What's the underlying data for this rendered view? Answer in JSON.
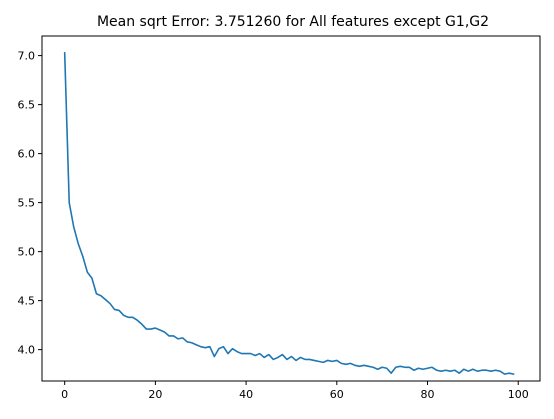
{
  "chart_data": {
    "type": "line",
    "title": "Mean sqrt Error: 3.751260 for All features except G1,G2",
    "xlabel": "",
    "ylabel": "",
    "xlim": [
      -5,
      104.8
    ],
    "ylim": [
      3.68,
      7.2
    ],
    "x_ticks": [
      0,
      20,
      40,
      60,
      80,
      100
    ],
    "x_tick_labels": [
      "0",
      "20",
      "40",
      "60",
      "80",
      "100"
    ],
    "y_ticks": [
      4.0,
      4.5,
      5.0,
      5.5,
      6.0,
      6.5,
      7.0
    ],
    "y_tick_labels": [
      "4.0",
      "4.5",
      "5.0",
      "5.5",
      "6.0",
      "6.5",
      "7.0"
    ],
    "grid": false,
    "legend": "none",
    "line_color": "#1f77b4",
    "series": [
      {
        "x": [
          0,
          1,
          2,
          3,
          4,
          5,
          6,
          7,
          8,
          9,
          10,
          11,
          12,
          13,
          14,
          15,
          16,
          17,
          18,
          19,
          20,
          21,
          22,
          23,
          24,
          25,
          26,
          27,
          28,
          29,
          30,
          31,
          32,
          33,
          34,
          35,
          36,
          37,
          38,
          39,
          40,
          41,
          42,
          43,
          44,
          45,
          46,
          47,
          48,
          49,
          50,
          51,
          52,
          53,
          54,
          55,
          56,
          57,
          58,
          59,
          60,
          61,
          62,
          63,
          64,
          65,
          66,
          67,
          68,
          69,
          70,
          71,
          72,
          73,
          74,
          75,
          76,
          77,
          78,
          79,
          80,
          81,
          82,
          83,
          84,
          85,
          86,
          87,
          88,
          89,
          90,
          91,
          92,
          93,
          94,
          95,
          96,
          97,
          98,
          99
        ],
        "y": [
          7.03,
          5.5,
          5.25,
          5.08,
          4.95,
          4.79,
          4.73,
          4.57,
          4.55,
          4.51,
          4.47,
          4.41,
          4.4,
          4.35,
          4.33,
          4.33,
          4.3,
          4.26,
          4.21,
          4.21,
          4.22,
          4.2,
          4.18,
          4.14,
          4.14,
          4.11,
          4.12,
          4.08,
          4.07,
          4.05,
          4.03,
          4.02,
          4.03,
          3.93,
          4.01,
          4.03,
          3.96,
          4.01,
          3.98,
          3.96,
          3.96,
          3.96,
          3.94,
          3.96,
          3.92,
          3.95,
          3.9,
          3.92,
          3.95,
          3.9,
          3.93,
          3.89,
          3.92,
          3.9,
          3.9,
          3.89,
          3.88,
          3.87,
          3.89,
          3.88,
          3.89,
          3.86,
          3.85,
          3.86,
          3.84,
          3.83,
          3.84,
          3.83,
          3.82,
          3.8,
          3.82,
          3.81,
          3.76,
          3.82,
          3.83,
          3.82,
          3.82,
          3.79,
          3.81,
          3.8,
          3.81,
          3.82,
          3.79,
          3.78,
          3.79,
          3.78,
          3.79,
          3.76,
          3.8,
          3.78,
          3.8,
          3.78,
          3.79,
          3.79,
          3.78,
          3.79,
          3.78,
          3.75,
          3.76,
          3.75
        ]
      }
    ]
  }
}
